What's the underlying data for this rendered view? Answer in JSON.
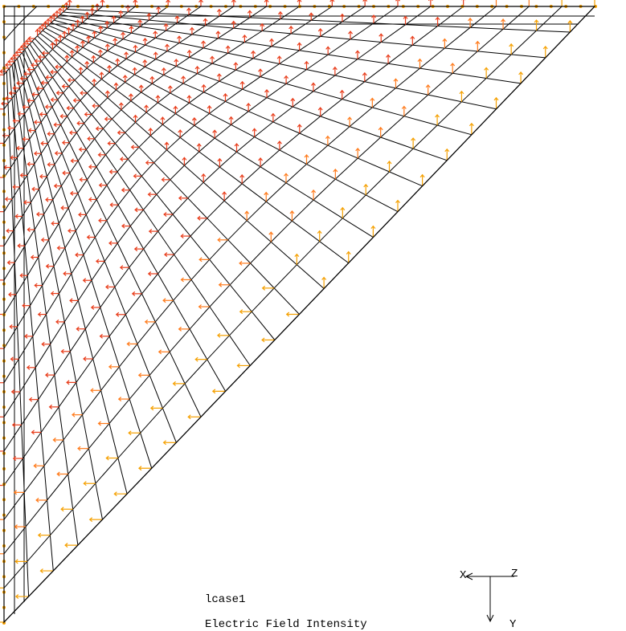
{
  "labels": {
    "load_case": "lcase1",
    "result": "Electric Field Intensity"
  },
  "triad": {
    "x": "X",
    "z": "Z",
    "y": "Y"
  }
}
